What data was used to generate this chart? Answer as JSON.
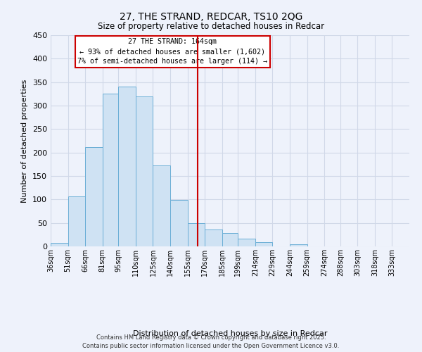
{
  "title": "27, THE STRAND, REDCAR, TS10 2QG",
  "subtitle": "Size of property relative to detached houses in Redcar",
  "xlabel": "Distribution of detached houses by size in Redcar",
  "ylabel": "Number of detached properties",
  "bin_labels": [
    "36sqm",
    "51sqm",
    "66sqm",
    "81sqm",
    "95sqm",
    "110sqm",
    "125sqm",
    "140sqm",
    "155sqm",
    "170sqm",
    "185sqm",
    "199sqm",
    "214sqm",
    "229sqm",
    "244sqm",
    "259sqm",
    "274sqm",
    "288sqm",
    "303sqm",
    "318sqm",
    "333sqm"
  ],
  "bin_edges": [
    36,
    51,
    66,
    81,
    95,
    110,
    125,
    140,
    155,
    170,
    185,
    199,
    214,
    229,
    244,
    259,
    274,
    288,
    303,
    318,
    333
  ],
  "bar_values": [
    7,
    107,
    211,
    325,
    340,
    320,
    172,
    99,
    50,
    36,
    29,
    17,
    9,
    0,
    5,
    0,
    0,
    0,
    0,
    0
  ],
  "bar_color": "#cfe2f3",
  "bar_edge_color": "#6aaed6",
  "property_line_x": 164,
  "property_line_color": "#cc0000",
  "annotation_title": "27 THE STRAND: 164sqm",
  "annotation_line1": "← 93% of detached houses are smaller (1,602)",
  "annotation_line2": "7% of semi-detached houses are larger (114) →",
  "annotation_box_color": "white",
  "annotation_box_edge": "#cc0000",
  "ylim": [
    0,
    450
  ],
  "yticks": [
    0,
    50,
    100,
    150,
    200,
    250,
    300,
    350,
    400,
    450
  ],
  "footer1": "Contains HM Land Registry data © Crown copyright and database right 2025.",
  "footer2": "Contains public sector information licensed under the Open Government Licence v3.0.",
  "bg_color": "#eef2fb",
  "grid_color": "#d0d8e8"
}
